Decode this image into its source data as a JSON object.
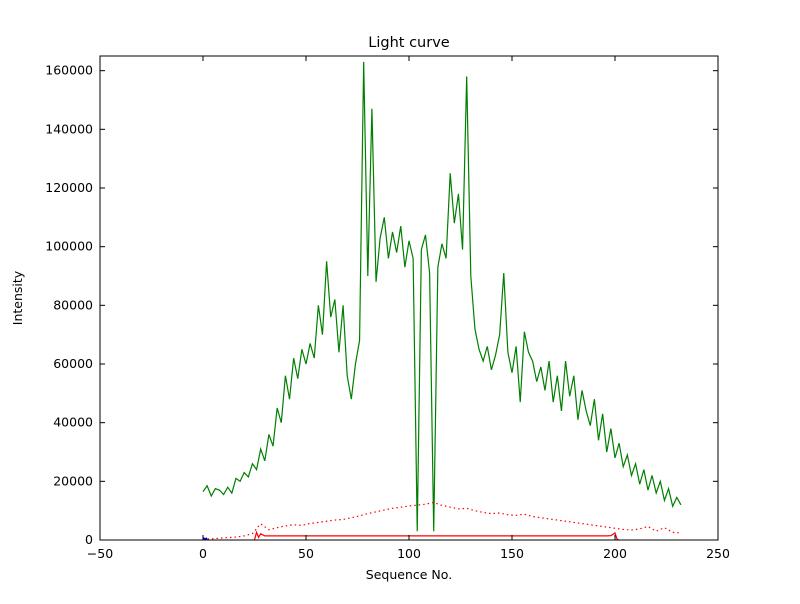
{
  "chart_data": {
    "type": "line",
    "title": "Light curve",
    "xlabel": "Sequence No.",
    "ylabel": "Intensity",
    "xlim": [
      -50,
      250
    ],
    "ylim": [
      0,
      165000
    ],
    "xticks": [
      -50,
      0,
      50,
      100,
      150,
      200,
      250
    ],
    "xtick_labels": [
      "−50",
      "0",
      "50",
      "100",
      "150",
      "200",
      "250"
    ],
    "yticks": [
      0,
      20000,
      40000,
      60000,
      80000,
      100000,
      120000,
      140000,
      160000
    ],
    "ytick_labels": [
      "0",
      "20000",
      "40000",
      "60000",
      "80000",
      "100000",
      "120000",
      "140000",
      "160000"
    ],
    "grid": false,
    "legend": "none",
    "background_color": "#ffffff",
    "axis_color": "#000000",
    "series": [
      {
        "name": "green-line",
        "color": "#007f00",
        "style": "solid",
        "width": 1.2,
        "x": [
          0,
          2,
          4,
          6,
          8,
          10,
          12,
          14,
          16,
          18,
          20,
          22,
          24,
          26,
          28,
          30,
          32,
          34,
          36,
          38,
          40,
          42,
          44,
          46,
          48,
          50,
          52,
          54,
          56,
          58,
          60,
          62,
          64,
          66,
          68,
          70,
          72,
          74,
          76,
          78,
          80,
          82,
          84,
          86,
          88,
          90,
          92,
          94,
          96,
          98,
          100,
          102,
          104,
          106,
          108,
          110,
          112,
          114,
          116,
          118,
          120,
          122,
          124,
          126,
          128,
          130,
          132,
          134,
          136,
          138,
          140,
          142,
          144,
          146,
          148,
          150,
          152,
          154,
          156,
          158,
          160,
          162,
          164,
          166,
          168,
          170,
          172,
          174,
          176,
          178,
          180,
          182,
          184,
          186,
          188,
          190,
          192,
          194,
          196,
          198,
          200,
          202,
          204,
          206,
          208,
          210,
          212,
          214,
          216,
          218,
          220,
          222,
          224,
          226,
          228,
          230,
          232
        ],
        "y": [
          16500,
          18500,
          15000,
          17500,
          17000,
          15500,
          18000,
          16000,
          21000,
          20000,
          23000,
          21500,
          26000,
          24000,
          31000,
          27000,
          36000,
          32000,
          45000,
          40000,
          56000,
          48000,
          62000,
          55000,
          65000,
          60000,
          67000,
          62000,
          80000,
          70000,
          95000,
          76000,
          82000,
          64000,
          80000,
          56000,
          48000,
          60000,
          68000,
          163000,
          90000,
          147000,
          88000,
          103000,
          110000,
          96000,
          105000,
          98000,
          107000,
          93000,
          102000,
          96000,
          3000,
          99000,
          104000,
          91000,
          3000,
          93000,
          101000,
          96000,
          125000,
          108000,
          118000,
          99000,
          158000,
          90000,
          72000,
          65000,
          61000,
          66000,
          58000,
          63000,
          70000,
          91000,
          64000,
          57000,
          66000,
          47000,
          71000,
          64000,
          61000,
          54000,
          59000,
          51000,
          61000,
          47000,
          56000,
          44000,
          61000,
          49000,
          56000,
          41000,
          51000,
          44000,
          39000,
          48000,
          34000,
          43000,
          30000,
          38000,
          28000,
          33000,
          25000,
          29000,
          22000,
          26000,
          19000,
          24000,
          17000,
          22000,
          16000,
          20000,
          13500,
          17500,
          11500,
          14500,
          12000
        ]
      },
      {
        "name": "red-dotted-line",
        "color": "#ff0000",
        "style": "dotted",
        "width": 1.2,
        "x": [
          0,
          4,
          8,
          12,
          16,
          20,
          24,
          28,
          32,
          36,
          40,
          44,
          48,
          52,
          56,
          60,
          64,
          68,
          72,
          76,
          80,
          84,
          88,
          92,
          96,
          100,
          104,
          108,
          112,
          116,
          120,
          124,
          128,
          132,
          136,
          140,
          144,
          148,
          152,
          156,
          160,
          164,
          168,
          172,
          176,
          180,
          184,
          188,
          192,
          196,
          200,
          204,
          208,
          212,
          216,
          220,
          224,
          228,
          232
        ],
        "y": [
          300,
          400,
          600,
          800,
          1000,
          1400,
          2200,
          5500,
          3500,
          4200,
          4800,
          5200,
          5000,
          5600,
          6000,
          6400,
          6800,
          7000,
          7600,
          8200,
          9000,
          9600,
          10200,
          10800,
          11200,
          11600,
          11900,
          12200,
          12800,
          11800,
          11200,
          10600,
          10800,
          10000,
          9400,
          9000,
          9200,
          8600,
          8400,
          8800,
          8000,
          7600,
          7200,
          6800,
          6400,
          6000,
          5600,
          5200,
          4800,
          4400,
          4000,
          3600,
          3400,
          3800,
          4600,
          3000,
          4200,
          2600,
          2400
        ]
      },
      {
        "name": "red-solid-line",
        "color": "#ff0000",
        "style": "solid",
        "width": 1.2,
        "x": [
          25,
          26,
          27,
          28,
          30,
          40,
          80,
          120,
          160,
          196,
          198,
          200,
          201,
          202
        ],
        "y": [
          100,
          2600,
          900,
          2100,
          1400,
          1400,
          1400,
          1400,
          1400,
          1400,
          1500,
          2400,
          300,
          0
        ]
      },
      {
        "name": "blue-marker",
        "color": "#0000ff",
        "style": "solid",
        "width": 2,
        "x": [
          0,
          1,
          2
        ],
        "y": [
          700,
          300,
          600
        ]
      }
    ]
  }
}
